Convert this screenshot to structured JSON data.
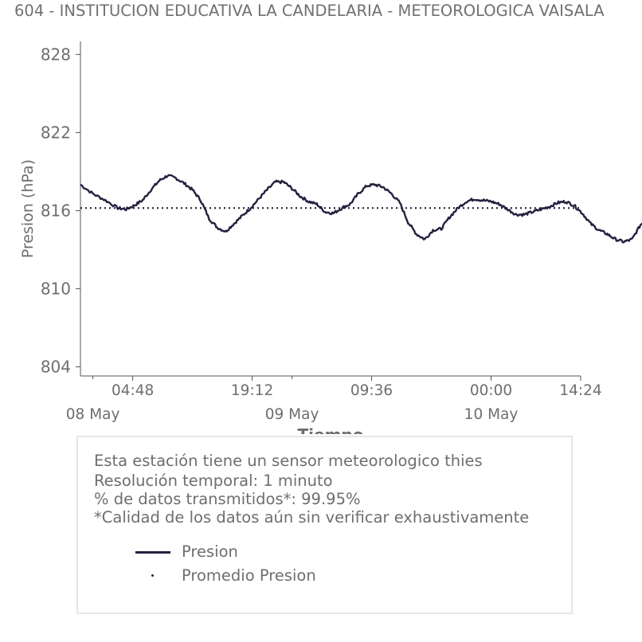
{
  "title": "604 - INSTITUCION EDUCATIVA LA CANDELARIA - METEOROLOGICA VAISALA",
  "chart_data": {
    "type": "line",
    "ylabel": "Presion (hPa)",
    "xlabel": "Tiempo",
    "ylim": [
      803.3,
      829.0
    ],
    "yticks": [
      804,
      810,
      816,
      822,
      828
    ],
    "xlim_hours": [
      -1.5,
      58.8
    ],
    "xticks": [
      {
        "label": "04:48",
        "hour": 4.8
      },
      {
        "label": "19:12",
        "hour": 19.2
      },
      {
        "label": "09:36",
        "hour": 33.6
      },
      {
        "label": "00:00",
        "hour": 48.0
      },
      {
        "label": "14:24",
        "hour": 62.4
      }
    ],
    "date_ticks": [
      {
        "label": "08 May",
        "hour": 0
      },
      {
        "label": "09 May",
        "hour": 24
      },
      {
        "label": "10 May",
        "hour": 48
      }
    ],
    "x_unit": "hours since 08 May 00:00",
    "series": [
      {
        "name": "Presion",
        "color": "#22223f",
        "points": [
          [
            -1.5,
            818.0
          ],
          [
            0,
            817.3
          ],
          [
            1.5,
            816.8
          ],
          [
            3.0,
            816.2
          ],
          [
            4.0,
            816.1
          ],
          [
            5.0,
            816.4
          ],
          [
            6.0,
            816.8
          ],
          [
            7.0,
            817.6
          ],
          [
            8.0,
            818.3
          ],
          [
            9.0,
            818.7
          ],
          [
            10.0,
            818.5
          ],
          [
            11.0,
            818.1
          ],
          [
            12.0,
            817.6
          ],
          [
            13.0,
            816.8
          ],
          [
            14.0,
            815.4
          ],
          [
            15.0,
            814.7
          ],
          [
            16.0,
            814.4
          ],
          [
            17.0,
            815.0
          ],
          [
            18.0,
            815.6
          ],
          [
            19.0,
            816.2
          ],
          [
            20.0,
            816.9
          ],
          [
            21.0,
            817.6
          ],
          [
            22.0,
            818.2
          ],
          [
            23.0,
            818.2
          ],
          [
            24.0,
            817.7
          ],
          [
            25.0,
            817.1
          ],
          [
            26.0,
            816.7
          ],
          [
            27.0,
            816.5
          ],
          [
            28.0,
            815.9
          ],
          [
            29.0,
            815.8
          ],
          [
            30.0,
            816.2
          ],
          [
            31.0,
            816.5
          ],
          [
            32.0,
            817.3
          ],
          [
            33.0,
            817.9
          ],
          [
            34.0,
            818.0
          ],
          [
            35.0,
            817.8
          ],
          [
            36.0,
            817.3
          ],
          [
            37.0,
            816.6
          ],
          [
            38.0,
            815.1
          ],
          [
            39.0,
            814.2
          ],
          [
            40.0,
            813.8
          ],
          [
            41.0,
            814.5
          ],
          [
            42.0,
            814.6
          ],
          [
            43.0,
            815.5
          ],
          [
            44.0,
            816.2
          ],
          [
            45.0,
            816.7
          ],
          [
            46.0,
            816.9
          ],
          [
            47.0,
            816.8
          ],
          [
            48.0,
            816.7
          ],
          [
            49.0,
            816.5
          ],
          [
            50.0,
            816.1
          ],
          [
            51.0,
            815.7
          ],
          [
            52.0,
            815.7
          ],
          [
            53.0,
            815.9
          ],
          [
            54.0,
            816.1
          ],
          [
            55.0,
            816.3
          ],
          [
            56.0,
            816.6
          ],
          [
            57.0,
            816.7
          ],
          [
            58.0,
            816.4
          ],
          [
            59.0,
            815.8
          ],
          [
            60.0,
            815.0
          ],
          [
            61.0,
            814.5
          ],
          [
            62.0,
            814.2
          ],
          [
            63.0,
            813.8
          ],
          [
            64.0,
            813.6
          ],
          [
            65.0,
            813.8
          ],
          [
            66.0,
            814.9
          ],
          [
            67.0,
            815.5
          ],
          [
            68.0,
            815.8
          ],
          [
            69.0,
            816.4
          ],
          [
            70.0,
            816.8
          ],
          [
            70.8,
            817.0
          ]
        ]
      },
      {
        "name": "Promedio Presion",
        "color": "#22223f",
        "constant": 816.2
      }
    ]
  },
  "info": {
    "line1": "Esta estación tiene un sensor meteorologico thies",
    "line2": "Resolución temporal: 1 minuto",
    "line3": "% de datos transmitidos*: 99.95%",
    "line4": "*Calidad de los datos aún sin verificar exhaustivamente"
  },
  "legend": {
    "item1": "Presion",
    "item2": "Promedio Presion"
  }
}
